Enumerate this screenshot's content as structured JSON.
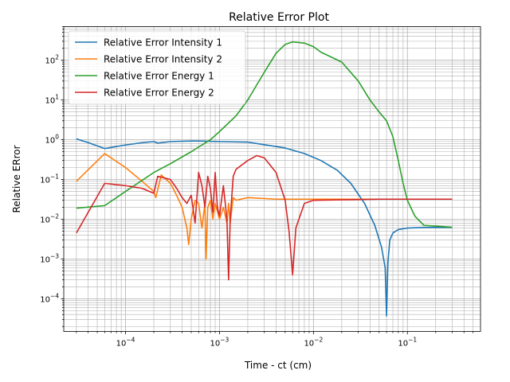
{
  "chart_data": {
    "type": "line",
    "title": "Relative Error Plot",
    "xlabel": "Time - ct (cm)",
    "ylabel": "Relative ERror",
    "xscale": "log",
    "yscale": "log",
    "xlim": [
      2.2e-05,
      0.6
    ],
    "ylim": [
      1.5e-05,
      700
    ],
    "xticks": [
      {
        "value": 0.0001,
        "base": "10",
        "exp": "−4"
      },
      {
        "value": 0.001,
        "base": "10",
        "exp": "−3"
      },
      {
        "value": 0.01,
        "base": "10",
        "exp": "−2"
      },
      {
        "value": 0.1,
        "base": "10",
        "exp": "−1"
      }
    ],
    "yticks": [
      {
        "value": 0.0001,
        "base": "10",
        "exp": "−4"
      },
      {
        "value": 0.001,
        "base": "10",
        "exp": "−3"
      },
      {
        "value": 0.01,
        "base": "10",
        "exp": "−2"
      },
      {
        "value": 0.1,
        "base": "10",
        "exp": "−1"
      },
      {
        "value": 1,
        "base": "10",
        "exp": "0"
      },
      {
        "value": 10,
        "base": "10",
        "exp": "1"
      },
      {
        "value": 100,
        "base": "10",
        "exp": "2"
      }
    ],
    "grid": "on (major and minor)",
    "legend_position": "upper-left",
    "series": [
      {
        "name": "Relative Error Intensity 1",
        "color": "#1f77b4",
        "points": [
          [
            3e-05,
            1.05
          ],
          [
            4e-05,
            0.85
          ],
          [
            6e-05,
            0.6
          ],
          [
            0.0001,
            0.74
          ],
          [
            0.00015,
            0.84
          ],
          [
            0.0002,
            0.9
          ],
          [
            0.00022,
            0.82
          ],
          [
            0.0003,
            0.9
          ],
          [
            0.0005,
            0.93
          ],
          [
            0.0006,
            0.93
          ],
          [
            0.001,
            0.9
          ],
          [
            0.002,
            0.87
          ],
          [
            0.003,
            0.75
          ],
          [
            0.005,
            0.62
          ],
          [
            0.008,
            0.45
          ],
          [
            0.012,
            0.3
          ],
          [
            0.018,
            0.17
          ],
          [
            0.025,
            0.08
          ],
          [
            0.035,
            0.025
          ],
          [
            0.045,
            0.007
          ],
          [
            0.053,
            0.002
          ],
          [
            0.058,
            0.0006
          ],
          [
            0.06,
            3.7e-05
          ],
          [
            0.062,
            0.0008
          ],
          [
            0.065,
            0.003
          ],
          [
            0.07,
            0.0045
          ],
          [
            0.08,
            0.0055
          ],
          [
            0.1,
            0.006
          ],
          [
            0.15,
            0.0062
          ],
          [
            0.3,
            0.0062
          ]
        ]
      },
      {
        "name": "Relative Error Intensity 2",
        "color": "#ff7f0e",
        "points": [
          [
            3e-05,
            0.09
          ],
          [
            6e-05,
            0.45
          ],
          [
            0.0001,
            0.2
          ],
          [
            0.00015,
            0.09
          ],
          [
            0.0002,
            0.05
          ],
          [
            0.00021,
            0.035
          ],
          [
            0.00024,
            0.13
          ],
          [
            0.0003,
            0.08
          ],
          [
            0.00035,
            0.04
          ],
          [
            0.0004,
            0.02
          ],
          [
            0.00045,
            0.006
          ],
          [
            0.00047,
            0.0023
          ],
          [
            0.0005,
            0.01
          ],
          [
            0.00055,
            0.03
          ],
          [
            0.0006,
            0.025
          ],
          [
            0.00065,
            0.006
          ],
          [
            0.0007,
            0.025
          ],
          [
            0.00072,
            0.001
          ],
          [
            0.00075,
            0.02
          ],
          [
            0.0008,
            0.03
          ],
          [
            0.00085,
            0.01
          ],
          [
            0.0009,
            0.025
          ],
          [
            0.001,
            0.01
          ],
          [
            0.0011,
            0.02
          ],
          [
            0.0012,
            0.008
          ],
          [
            0.00125,
            0.025
          ],
          [
            0.0013,
            0.008
          ],
          [
            0.0014,
            0.035
          ],
          [
            0.0015,
            0.03
          ],
          [
            0.002,
            0.035
          ],
          [
            0.004,
            0.032
          ],
          [
            0.01,
            0.032
          ],
          [
            0.05,
            0.032
          ],
          [
            0.1,
            0.032
          ],
          [
            0.3,
            0.032
          ]
        ]
      },
      {
        "name": "Relative Error Energy 1",
        "color": "#2ca02c",
        "points": [
          [
            3e-05,
            0.019
          ],
          [
            6e-05,
            0.022
          ],
          [
            0.0001,
            0.05
          ],
          [
            0.0002,
            0.15
          ],
          [
            0.0003,
            0.25
          ],
          [
            0.0005,
            0.5
          ],
          [
            0.0008,
            1.0
          ],
          [
            0.001,
            1.6
          ],
          [
            0.0015,
            4.0
          ],
          [
            0.002,
            10
          ],
          [
            0.003,
            50
          ],
          [
            0.004,
            150
          ],
          [
            0.005,
            250
          ],
          [
            0.006,
            290
          ],
          [
            0.008,
            270
          ],
          [
            0.01,
            220
          ],
          [
            0.012,
            160
          ],
          [
            0.02,
            90
          ],
          [
            0.03,
            30
          ],
          [
            0.04,
            10
          ],
          [
            0.05,
            5
          ],
          [
            0.06,
            3.0
          ],
          [
            0.07,
            1.2
          ],
          [
            0.08,
            0.3
          ],
          [
            0.09,
            0.08
          ],
          [
            0.1,
            0.03
          ],
          [
            0.12,
            0.012
          ],
          [
            0.15,
            0.007
          ],
          [
            0.3,
            0.0063
          ]
        ]
      },
      {
        "name": "Relative Error Energy 2",
        "color": "#d62728",
        "points": [
          [
            3e-05,
            0.0045
          ],
          [
            6e-05,
            0.08
          ],
          [
            0.0001,
            0.07
          ],
          [
            0.00015,
            0.06
          ],
          [
            0.0002,
            0.045
          ],
          [
            0.00022,
            0.12
          ],
          [
            0.0003,
            0.1
          ],
          [
            0.00035,
            0.06
          ],
          [
            0.0004,
            0.035
          ],
          [
            0.00045,
            0.025
          ],
          [
            0.0005,
            0.04
          ],
          [
            0.00055,
            0.008
          ],
          [
            0.0006,
            0.15
          ],
          [
            0.00065,
            0.07
          ],
          [
            0.0007,
            0.02
          ],
          [
            0.00075,
            0.12
          ],
          [
            0.0008,
            0.06
          ],
          [
            0.00085,
            0.015
          ],
          [
            0.0009,
            0.15
          ],
          [
            0.00095,
            0.02
          ],
          [
            0.001,
            0.012
          ],
          [
            0.0011,
            0.07
          ],
          [
            0.0012,
            0.01
          ],
          [
            0.00125,
            0.0003
          ],
          [
            0.0013,
            0.01
          ],
          [
            0.0014,
            0.12
          ],
          [
            0.0015,
            0.18
          ],
          [
            0.002,
            0.3
          ],
          [
            0.0025,
            0.4
          ],
          [
            0.003,
            0.35
          ],
          [
            0.004,
            0.15
          ],
          [
            0.005,
            0.03
          ],
          [
            0.0055,
            0.005
          ],
          [
            0.006,
            0.0004
          ],
          [
            0.0065,
            0.006
          ],
          [
            0.008,
            0.025
          ],
          [
            0.01,
            0.03
          ],
          [
            0.05,
            0.032
          ],
          [
            0.1,
            0.032
          ],
          [
            0.3,
            0.032
          ]
        ]
      }
    ]
  }
}
